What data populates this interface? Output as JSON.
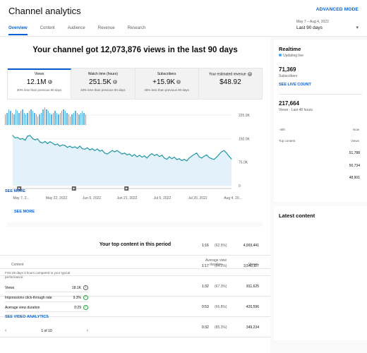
{
  "header": {
    "title": "Channel analytics",
    "advanced_mode": "ADVANCED MODE",
    "tabs": [
      "Overview",
      "Content",
      "Audience",
      "Revenue",
      "Research"
    ],
    "date_range": "May 7 – Aug 4, 2022",
    "date_label": "Last 90 days"
  },
  "overview": {
    "headline": "Your channel got 12,073,876 views in the last 90 days",
    "metrics": [
      {
        "label": "Views",
        "value": "12.1M",
        "sub": "30% less than previous 90 days"
      },
      {
        "label": "Watch time (hours)",
        "value": "251.5K",
        "sub": "33% less than previous 90 days"
      },
      {
        "label": "Subscribers",
        "value": "+15.9K",
        "sub": "48% less than previous 90 days"
      },
      {
        "label": "Your estimated revenue",
        "value": "$48.92",
        "sub": ""
      }
    ],
    "see_more": "SEE MORE"
  },
  "chart_data": {
    "type": "area",
    "x_ticks": [
      "May 7, 2...",
      "May 22, 2022",
      "Jun 6, 2022",
      "Jun 21, 2022",
      "Jul 5, 2022",
      "Jul 20, 2022",
      "Aug 4, 20..."
    ],
    "y_ticks": [
      "225.0K",
      "150.0K",
      "75.0K",
      "0"
    ],
    "ylim": [
      0,
      225000
    ],
    "values": [
      160000,
      152000,
      154000,
      148000,
      150000,
      145000,
      158000,
      160000,
      150000,
      146000,
      149000,
      139000,
      136000,
      141000,
      134000,
      140000,
      136000,
      130000,
      133000,
      126000,
      130000,
      128000,
      122000,
      126000,
      121000,
      124000,
      119000,
      126000,
      118000,
      116000,
      121000,
      114000,
      118000,
      112000,
      117000,
      110000,
      113000,
      104000,
      101000,
      106000,
      112000,
      108000,
      112000,
      106000,
      101000,
      104000,
      98000,
      101000,
      94000,
      99000,
      92000,
      97000,
      91000,
      95000,
      88000,
      97000,
      102000,
      96000,
      100000,
      93000,
      97000,
      88000,
      84000,
      92000,
      86000,
      91000,
      83000,
      86000,
      80000,
      84000,
      79000,
      88000,
      94000,
      100000,
      104000,
      92000,
      88000,
      94000,
      98000,
      90000,
      86000,
      84000,
      91000,
      100000,
      108000,
      112000,
      104000,
      94000,
      85000
    ],
    "color": "#2196a5",
    "fill": "#e3f2fa"
  },
  "top_content": {
    "title": "Your top content in this period",
    "columns": {
      "content": "Content",
      "duration": "Average view duration",
      "views": "Views"
    },
    "rows": [
      {
        "duration": "1:16",
        "pct": "(62.5%)",
        "views": "4,993,441"
      },
      {
        "duration": "1:17",
        "pct": "(64.2%)",
        "views": "3,540,117"
      },
      {
        "duration": "1:32",
        "pct": "(67.3%)",
        "views": "811,625"
      },
      {
        "duration": "0:53",
        "pct": "(66.8%)",
        "views": "420,596"
      },
      {
        "duration": "0:32",
        "pct": "(85.3%)",
        "views": "349,234"
      }
    ]
  },
  "realtime": {
    "title": "Realtime",
    "live": "Updating live",
    "subscribers": "71,369",
    "subscribers_label": "Subscribers",
    "live_count_link": "SEE LIVE COUNT",
    "views": "217,664",
    "views_label": "Views · Last 48 hours",
    "bars": [
      0.6,
      0.7,
      0.9,
      0.8,
      0.7,
      0.6,
      0.9,
      0.8,
      0.7,
      0.8,
      0.9,
      0.7,
      0.6,
      0.7,
      0.8,
      0.9,
      0.8,
      0.7,
      0.6,
      0.5,
      0.6,
      0.7,
      0.9,
      1.0,
      0.9,
      0.8,
      0.7,
      0.6,
      0.7,
      0.8,
      0.7,
      0.6,
      0.7,
      0.8,
      0.9,
      0.8,
      0.7,
      0.6,
      0.5,
      0.6,
      0.7,
      0.8,
      0.7,
      0.6,
      0.7,
      0.8,
      0.7,
      0.6
    ],
    "axis_start": "-48h",
    "axis_end": "Now",
    "top_content_label": "Top content",
    "views_col": "Views",
    "top_values": [
      "51,788",
      "50,734",
      "48,901"
    ],
    "see_more": "SEE MORE"
  },
  "latest_content": {
    "title": "Latest content",
    "meta": "First 45 days 3 hours compared to your typical performance:",
    "rows": [
      {
        "label": "Views",
        "value": "18.1K"
      },
      {
        "label": "Impressions click-through rate",
        "value": "9.3%"
      },
      {
        "label": "Average view duration",
        "value": "0:29"
      }
    ],
    "link": "SEE VIDEO ANALYTICS",
    "pager": "1 of 10"
  }
}
